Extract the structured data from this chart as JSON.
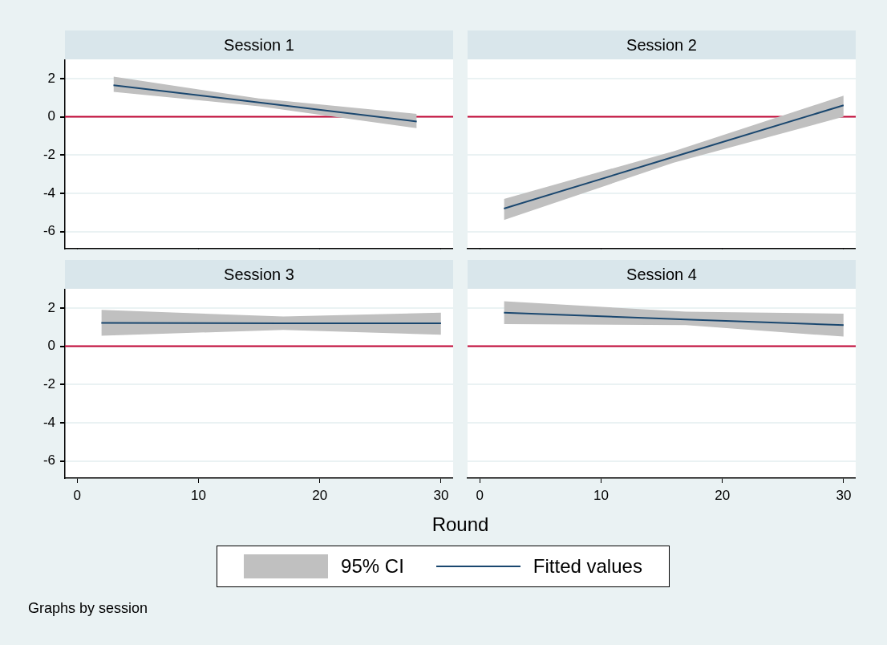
{
  "chart_data": [
    {
      "type": "line",
      "title": "Session 1",
      "xlim": [
        -1,
        31
      ],
      "xticks": [
        0,
        10,
        20,
        30
      ],
      "ylim": [
        -6.9,
        3
      ],
      "yticks": [
        -6,
        -4,
        -2,
        0,
        2
      ],
      "grid": "y",
      "tick_labels": "y",
      "ref_lines": [
        {
          "axis": "y",
          "value": 0,
          "color": "#c10534"
        }
      ],
      "series": [
        {
          "color": "#1a476f",
          "x": [
            3,
            15,
            28
          ],
          "values": [
            1.65,
            0.75,
            -0.25
          ],
          "lower": [
            1.3,
            0.55,
            -0.6
          ],
          "upper": [
            2.1,
            0.95,
            0.15
          ]
        }
      ]
    },
    {
      "type": "line",
      "title": "Session 2",
      "xlim": [
        -1,
        31
      ],
      "xticks": [
        0,
        10,
        20,
        30
      ],
      "ylim": [
        -6.9,
        3
      ],
      "yticks": [
        -6,
        -4,
        -2,
        0,
        2
      ],
      "grid": "y",
      "tick_labels": false,
      "ref_lines": [
        {
          "axis": "y",
          "value": 0,
          "color": "#c10534"
        }
      ],
      "series": [
        {
          "color": "#1a476f",
          "x": [
            2,
            16,
            30
          ],
          "values": [
            -4.8,
            -2.1,
            0.6
          ],
          "lower": [
            -5.4,
            -2.4,
            0.0
          ],
          "upper": [
            -4.3,
            -1.8,
            1.1
          ]
        }
      ]
    },
    {
      "type": "line",
      "title": "Session 3",
      "xlabel": "Round",
      "xlim": [
        -1,
        31
      ],
      "xticks": [
        0,
        10,
        20,
        30
      ],
      "ylim": [
        -6.9,
        3
      ],
      "yticks": [
        -6,
        -4,
        -2,
        0,
        2
      ],
      "grid": "y",
      "legend": "bottom",
      "annotations": [
        "95% CI",
        "Graphs by session"
      ],
      "ref_lines": [
        {
          "axis": "y",
          "value": 0,
          "color": "#c10534"
        }
      ],
      "series": [
        {
          "name": "Fitted values",
          "color": "#1a476f",
          "x": [
            2,
            17,
            30
          ],
          "values": [
            1.22,
            1.2,
            1.2
          ],
          "lower": [
            0.55,
            0.85,
            0.6
          ],
          "upper": [
            1.9,
            1.55,
            1.75
          ]
        }
      ]
    },
    {
      "type": "line",
      "title": "Session 4",
      "xlim": [
        -1,
        31
      ],
      "xticks": [
        0,
        10,
        20,
        30
      ],
      "ylim": [
        -6.9,
        3
      ],
      "yticks": [
        -6,
        -4,
        -2,
        0,
        2
      ],
      "grid": "y",
      "tick_labels": "x",
      "ref_lines": [
        {
          "axis": "y",
          "value": 0,
          "color": "#c10534"
        }
      ],
      "series": [
        {
          "color": "#1a476f",
          "x": [
            2,
            17,
            30
          ],
          "values": [
            1.75,
            1.4,
            1.1
          ],
          "lower": [
            1.15,
            1.1,
            0.5
          ],
          "upper": [
            2.35,
            1.8,
            1.7
          ]
        }
      ]
    }
  ]
}
